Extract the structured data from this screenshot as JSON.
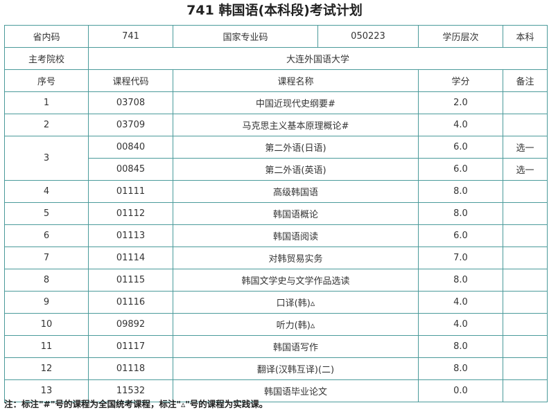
{
  "title": "741 韩国语(本科段)考试计划",
  "header": {
    "province_code_label": "省内码",
    "province_code_value": "741",
    "major_code_label": "国家专业码",
    "major_code_value": "050223",
    "level_label": "学历层次",
    "level_value": "本科",
    "school_label": "主考院校",
    "school_value": "大连外国语大学"
  },
  "columns": {
    "no": "序号",
    "code": "课程代码",
    "name": "课程名称",
    "credit": "学分",
    "note": "备注"
  },
  "courses": [
    {
      "no": "1",
      "code": "03708",
      "name": "中国近现代史纲要#",
      "credit": "2.0",
      "note": ""
    },
    {
      "no": "2",
      "code": "03709",
      "name": "马克思主义基本原理概论#",
      "credit": "4.0",
      "note": ""
    },
    {
      "no": "3",
      "code": "00840",
      "name": "第二外语(日语)",
      "credit": "6.0",
      "note": "选一"
    },
    {
      "no": "",
      "code": "00845",
      "name": "第二外语(英语)",
      "credit": "6.0",
      "note": "选一"
    },
    {
      "no": "4",
      "code": "01111",
      "name": "高级韩国语",
      "credit": "8.0",
      "note": ""
    },
    {
      "no": "5",
      "code": "01112",
      "name": "韩国语概论",
      "credit": "8.0",
      "note": ""
    },
    {
      "no": "6",
      "code": "01113",
      "name": "韩国语阅读",
      "credit": "6.0",
      "note": ""
    },
    {
      "no": "7",
      "code": "01114",
      "name": "对韩贸易实务",
      "credit": "7.0",
      "note": ""
    },
    {
      "no": "8",
      "code": "01115",
      "name": "韩国文学史与文学作品选读",
      "credit": "8.0",
      "note": ""
    },
    {
      "no": "9",
      "code": "01116",
      "name": "口译(韩)▵",
      "credit": "4.0",
      "note": ""
    },
    {
      "no": "10",
      "code": "09892",
      "name": "听力(韩)▵",
      "credit": "4.0",
      "note": ""
    },
    {
      "no": "11",
      "code": "01117",
      "name": "韩国语写作",
      "credit": "8.0",
      "note": ""
    },
    {
      "no": "12",
      "code": "01118",
      "name": "翻译(汉韩互译)(二)",
      "credit": "8.0",
      "note": ""
    },
    {
      "no": "13",
      "code": "11532",
      "name": "韩国语毕业论文",
      "credit": "0.0",
      "note": ""
    }
  ],
  "footnote": "注：标注\"#\"号的课程为全国统考课程，标注\"▵\"号的课程为实践课。"
}
